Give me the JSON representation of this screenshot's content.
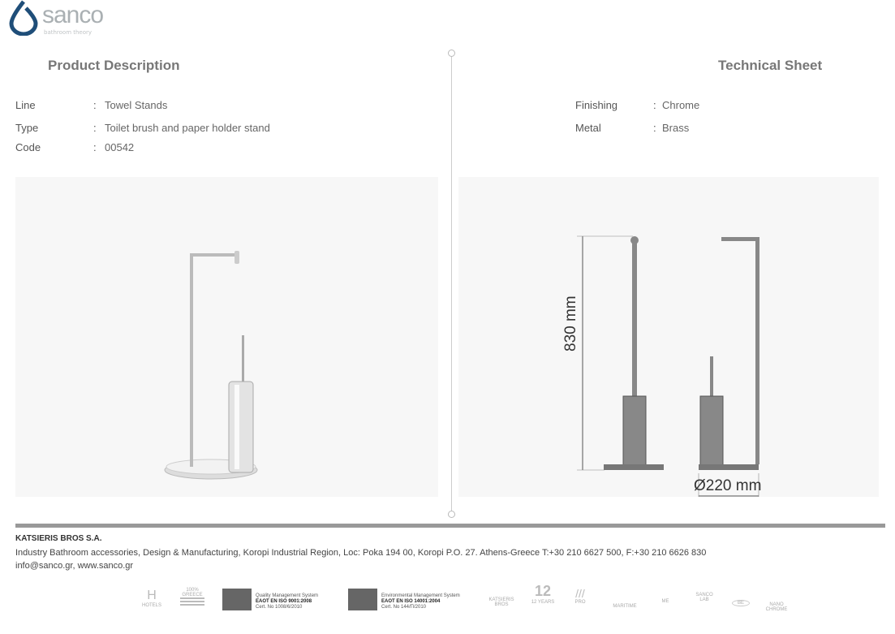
{
  "brand": {
    "name": "sanco",
    "tagline": "bathroom theory",
    "color": "#1f4e79"
  },
  "left": {
    "title": "Product Description",
    "rows": [
      {
        "label": "Line",
        "value": "Towel Stands"
      },
      {
        "label": "Type",
        "value": "Toilet brush and paper holder stand"
      },
      {
        "label": "Code",
        "value": "00542"
      }
    ]
  },
  "right": {
    "title": "Technical Sheet",
    "rows": [
      {
        "label": "Finishing",
        "value": "Chrome"
      },
      {
        "label": "Metal",
        "value": "Brass"
      }
    ]
  },
  "drawing": {
    "height": "830 mm",
    "diameter": "Ø220 mm"
  },
  "footer": {
    "company": "KATSIERIS BROS S.A.",
    "line1": "Industry Bathroom accessories, Design & Manufacturing, Koropi Industrial Region, Loc: Poka 194 00, Koropi P.O. 27. Athens-Greece   T:+30 210 6627 500, F:+30 210 6626 830",
    "line2": "info@sanco.gr, www.sanco.gr"
  },
  "certs": [
    {
      "l1": "Quality Management System",
      "l2": "EAOT EN ISO 9001:2008",
      "l3": "Cert. No 1008/6/2010"
    },
    {
      "l1": "Environmental Management System",
      "l2": "EAOT EN ISO 14001:2004",
      "l3": "Cert. No 144/П/2010"
    }
  ],
  "badges": [
    "HOTELS",
    "100% GREECE",
    "KATSIERIS BROS",
    "12 YEARS",
    "PRO",
    "MARITIME",
    "ME",
    "SANCO LAB",
    "BE",
    "NANO CHROME"
  ]
}
